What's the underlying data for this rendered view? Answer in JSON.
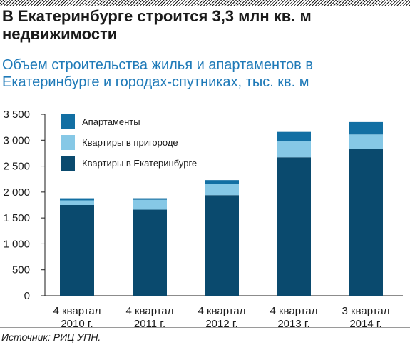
{
  "title": "В Екатеринбурге строится 3,3 млн кв. м недвижимости",
  "subtitle": "Объем строительства жилья и апартаментов в Екатеринбурге и городах-спутниках, тыс. кв. м",
  "source": "Источник: РИЦ УПН.",
  "chart_data": {
    "type": "bar",
    "stacked": true,
    "categories": [
      [
        "4 квартал",
        "2010 г."
      ],
      [
        "4 квартал",
        "2011 г."
      ],
      [
        "4 квартал",
        "2012 г."
      ],
      [
        "4 квартал",
        "2013 г."
      ],
      [
        "3 квартал",
        "2014 г."
      ]
    ],
    "series": [
      {
        "name": "Квартиры в Екатеринбурге",
        "color": "#0a4a6e",
        "values": [
          1750,
          1660,
          1940,
          2670,
          2830
        ]
      },
      {
        "name": "Квартиры в пригороде",
        "color": "#86c8e6",
        "values": [
          90,
          190,
          220,
          320,
          280
        ]
      },
      {
        "name": "Апартаменты",
        "color": "#126fa3",
        "values": [
          40,
          30,
          70,
          170,
          240
        ]
      }
    ],
    "legend_order": [
      "Апартаменты",
      "Квартиры в пригороде",
      "Квартиры в Екатеринбурге"
    ],
    "legend_position": "top-left",
    "y_ticks": [
      0,
      500,
      1000,
      1500,
      2000,
      2500,
      3000,
      3500
    ],
    "y_tick_labels": [
      "0",
      "500",
      "1 000",
      "1 500",
      "2 000",
      "2 500",
      "3 000",
      "3 500"
    ],
    "ylim": [
      0,
      3500
    ],
    "grid": false,
    "xlabel": "",
    "ylabel": ""
  }
}
